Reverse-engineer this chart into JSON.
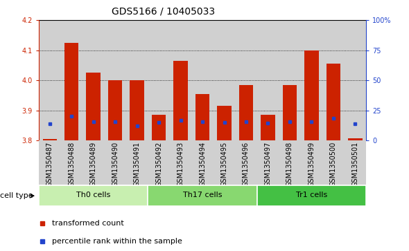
{
  "title": "GDS5166 / 10405033",
  "samples": [
    "GSM1350487",
    "GSM1350488",
    "GSM1350489",
    "GSM1350490",
    "GSM1350491",
    "GSM1350492",
    "GSM1350493",
    "GSM1350494",
    "GSM1350495",
    "GSM1350496",
    "GSM1350497",
    "GSM1350498",
    "GSM1350499",
    "GSM1350500",
    "GSM1350501"
  ],
  "red_values": [
    3.805,
    4.125,
    4.025,
    4.0,
    4.0,
    3.885,
    4.065,
    3.955,
    3.915,
    3.985,
    3.885,
    3.985,
    4.1,
    4.055,
    3.808
  ],
  "blue_values": [
    3.855,
    3.882,
    3.862,
    3.862,
    3.85,
    3.86,
    3.868,
    3.862,
    3.86,
    3.863,
    3.858,
    3.862,
    3.863,
    3.875,
    3.855
  ],
  "ylim_left": [
    3.8,
    4.2
  ],
  "ylim_right": [
    0,
    100
  ],
  "yticks_left": [
    3.8,
    3.9,
    4.0,
    4.1,
    4.2
  ],
  "yticks_right": [
    0,
    25,
    50,
    75,
    100
  ],
  "ytick_labels_right": [
    "0",
    "25",
    "50",
    "75",
    "100%"
  ],
  "bar_bottom": 3.8,
  "cell_groups": [
    {
      "label": "Th0 cells",
      "start": 0,
      "end": 5,
      "color": "#c8efb0"
    },
    {
      "label": "Th17 cells",
      "start": 5,
      "end": 10,
      "color": "#88d870"
    },
    {
      "label": "Tr1 cells",
      "start": 10,
      "end": 15,
      "color": "#44c044"
    }
  ],
  "cell_type_label": "cell type",
  "legend_red_label": "transformed count",
  "legend_blue_label": "percentile rank within the sample",
  "bar_color": "#cc2200",
  "blue_color": "#2244cc",
  "col_bg_color": "#d0d0d0",
  "bar_width": 0.65,
  "title_fontsize": 10,
  "tick_fontsize": 7,
  "label_fontsize": 8
}
